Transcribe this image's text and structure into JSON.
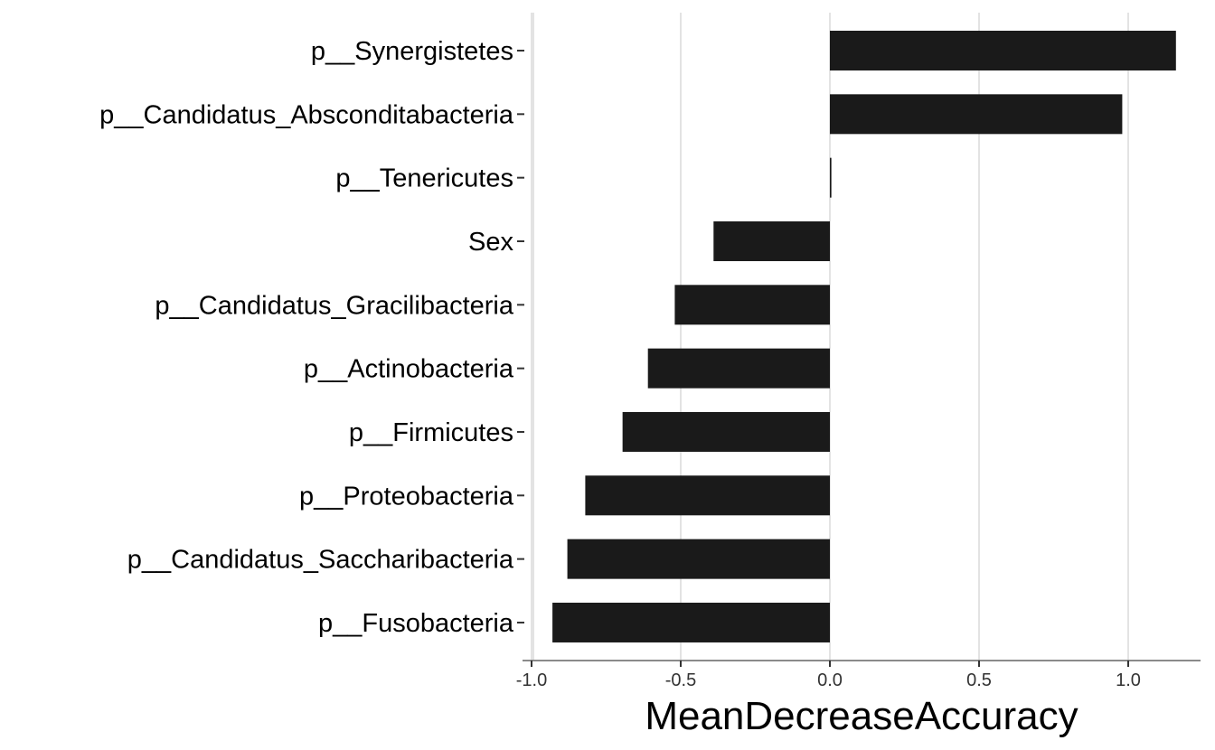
{
  "chart_data": {
    "type": "bar",
    "orientation": "horizontal",
    "title": "",
    "xlabel": "MeanDecreaseAccuracy",
    "ylabel": "",
    "xlim": [
      -1.0,
      1.15
    ],
    "x_ticks": [
      -1.0,
      -0.5,
      0.0,
      0.5,
      1.0
    ],
    "x_tick_labels": [
      "-1.0",
      "-0.5",
      "0.0",
      "0.5",
      "1.0"
    ],
    "grid": true,
    "legend": "none",
    "categories": [
      "p__Synergistetes",
      "p__Candidatus_Absconditabacteria",
      "p__Tenericutes",
      "Sex",
      "p__Candidatus_Gracilibacteria",
      "p__Actinobacteria",
      "p__Firmicutes",
      "p__Proteobacteria",
      "p__Candidatus_Saccharibacteria",
      "p__Fusobacteria"
    ],
    "values": [
      1.16,
      0.98,
      0.005,
      -0.39,
      -0.52,
      -0.61,
      -0.695,
      -0.82,
      -0.88,
      -0.93
    ]
  },
  "colors": {
    "bar": "#1a1a1a",
    "grid": "#e3e3e3",
    "axis": "#8a8a8a"
  }
}
